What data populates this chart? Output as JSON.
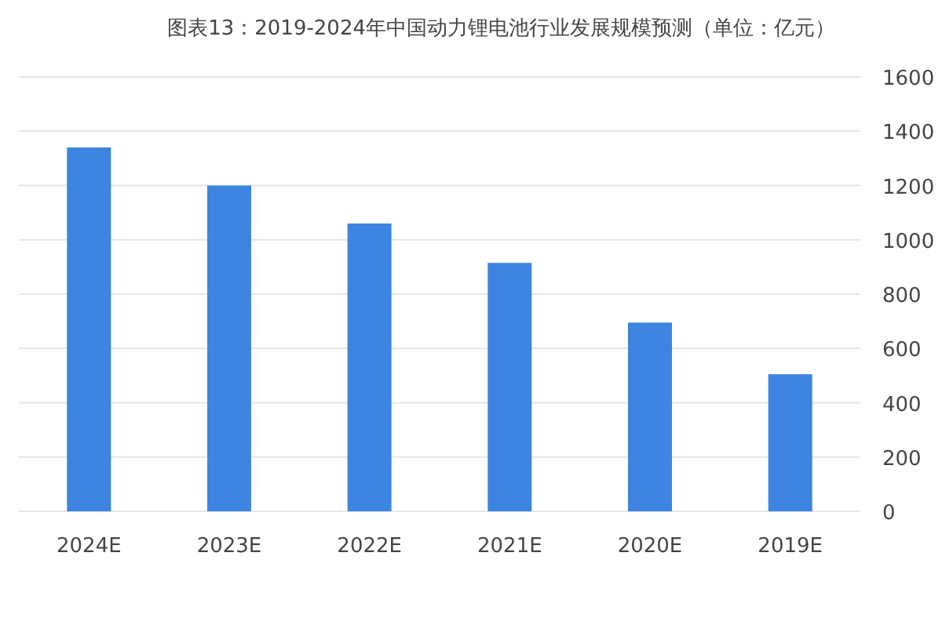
{
  "chart_data": {
    "type": "bar",
    "title": "图表13：2019-2024年中国动力锂电池行业发展规模预测（单位：亿元）",
    "categories": [
      "2024E",
      "2023E",
      "2022E",
      "2021E",
      "2020E",
      "2019E"
    ],
    "values": [
      1340,
      1200,
      1060,
      915,
      695,
      505
    ],
    "color": "#3d85e0",
    "ylim": [
      0,
      1600
    ],
    "yticks": [
      0,
      200,
      400,
      600,
      800,
      1000,
      1200,
      1400,
      1600
    ],
    "grid": "y"
  }
}
